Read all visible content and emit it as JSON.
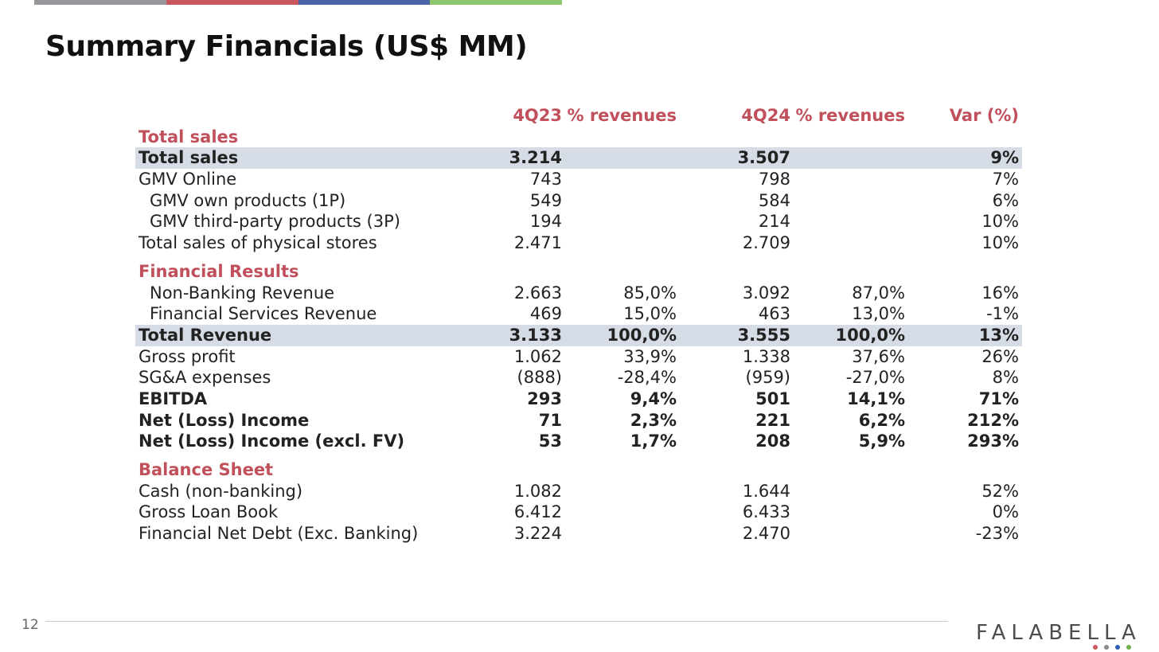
{
  "colors": {
    "accent": "#c0505b",
    "highlight": "#d6dce5",
    "bar": [
      "#98989c",
      "#c8575f",
      "#4a64a8",
      "#8cc66d"
    ],
    "logo_dots": [
      "#c8575f",
      "#8a8a8a",
      "#2f5fae",
      "#6fb04c"
    ]
  },
  "title": "Summary Financials (US$ MM)",
  "headers": {
    "col1": "4Q23",
    "col2": "% revenues",
    "col3": "4Q24",
    "col4": "% revenues",
    "col5": "Var (%)"
  },
  "sections": {
    "sales": {
      "title": "Total sales",
      "rows": [
        {
          "label": "Total sales",
          "v1": "3.214",
          "v2": "",
          "v3": "3.507",
          "v4": "",
          "v5": "9%"
        },
        {
          "label": "GMV Online",
          "v1": "743",
          "v2": "",
          "v3": "798",
          "v4": "",
          "v5": "7%"
        },
        {
          "label": "GMV own products (1P)",
          "v1": "549",
          "v2": "",
          "v3": "584",
          "v4": "",
          "v5": "6%"
        },
        {
          "label": "GMV third-party products (3P)",
          "v1": "194",
          "v2": "",
          "v3": "214",
          "v4": "",
          "v5": "10%"
        },
        {
          "label": "Total sales of physical stores",
          "v1": "2.471",
          "v2": "",
          "v3": "2.709",
          "v4": "",
          "v5": "10%"
        }
      ]
    },
    "financial": {
      "title": "Financial Results",
      "rows": [
        {
          "label": "Non-Banking Revenue",
          "v1": "2.663",
          "v2": "85,0%",
          "v3": "3.092",
          "v4": "87,0%",
          "v5": "16%"
        },
        {
          "label": "Financial Services Revenue",
          "v1": "469",
          "v2": "15,0%",
          "v3": "463",
          "v4": "13,0%",
          "v5": "-1%"
        },
        {
          "label": "Total Revenue",
          "v1": "3.133",
          "v2": "100,0%",
          "v3": "3.555",
          "v4": "100,0%",
          "v5": "13%"
        },
        {
          "label": "Gross profit",
          "v1": "1.062",
          "v2": "33,9%",
          "v3": "1.338",
          "v4": "37,6%",
          "v5": "26%"
        },
        {
          "label": "SG&A expenses",
          "v1": "(888)",
          "v2": "-28,4%",
          "v3": "(959)",
          "v4": "-27,0%",
          "v5": "8%"
        },
        {
          "label": "EBITDA",
          "v1": "293",
          "v2": "9,4%",
          "v3": "501",
          "v4": "14,1%",
          "v5": "71%"
        },
        {
          "label": "Net (Loss) Income",
          "v1": "71",
          "v2": "2,3%",
          "v3": "221",
          "v4": "6,2%",
          "v5": "212%"
        },
        {
          "label": "Net (Loss) Income (excl. FV)",
          "v1": "53",
          "v2": "1,7%",
          "v3": "208",
          "v4": "5,9%",
          "v5": "293%"
        }
      ]
    },
    "balance": {
      "title": "Balance Sheet",
      "rows": [
        {
          "label": "Cash (non-banking)",
          "v1": "1.082",
          "v2": "",
          "v3": "1.644",
          "v4": "",
          "v5": "52%"
        },
        {
          "label": "Gross Loan Book",
          "v1": "6.412",
          "v2": "",
          "v3": "6.433",
          "v4": "",
          "v5": "0%"
        },
        {
          "label": "Financial Net Debt (Exc. Banking)",
          "v1": "3.224",
          "v2": "",
          "v3": "2.470",
          "v4": "",
          "v5": "-23%"
        }
      ]
    }
  },
  "footer": {
    "page_number": "12",
    "logo_text": "FALABELLA"
  }
}
